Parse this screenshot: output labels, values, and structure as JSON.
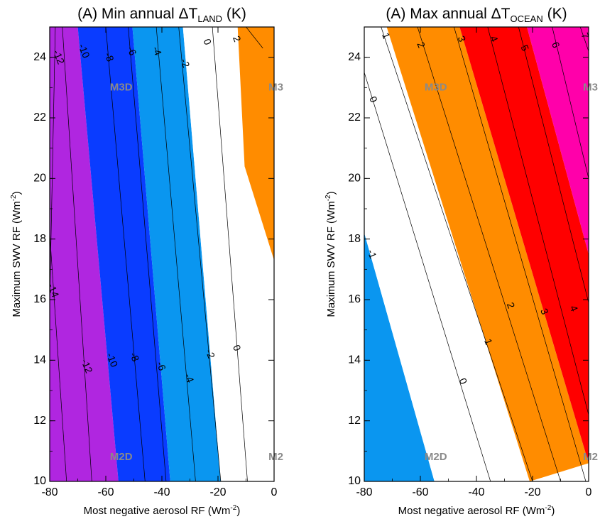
{
  "chart_data": [
    {
      "type": "contour",
      "title": "(A) Min annual ΔT",
      "title_sub": "LAND",
      "title_suffix": " (K)",
      "xlabel": "Most negative aerosol RF (Wm",
      "xlabel_sup": "-2",
      "xlabel_end": ")",
      "ylabel": "Maximum SWV RF (Wm",
      "ylabel_sup": "-2",
      "ylabel_end": ")",
      "xlim": [
        -80,
        0
      ],
      "ylim": [
        10,
        25
      ],
      "xticks": [
        -80,
        -60,
        -40,
        -20,
        0
      ],
      "yticks": [
        10,
        12,
        14,
        16,
        18,
        20,
        22,
        24
      ],
      "grid": false,
      "fill_bands": [
        {
          "color": "#b026e0",
          "left_edge": [
            [
              -80,
              10
            ],
            [
              -80,
              25
            ]
          ],
          "right_edge": [
            [
              -55.5,
              10
            ],
            [
              -70,
              25
            ]
          ]
        },
        {
          "color": "#0a3cff",
          "left_edge": [
            [
              -55.5,
              10
            ],
            [
              -70,
              25
            ]
          ],
          "right_edge": [
            [
              -37,
              10
            ],
            [
              -50.5,
              25
            ]
          ]
        },
        {
          "color": "#0a96f0",
          "left_edge": [
            [
              -37,
              10
            ],
            [
              -50.5,
              25
            ]
          ],
          "right_edge": [
            [
              -19,
              10
            ],
            [
              -32.5,
              25
            ]
          ]
        },
        {
          "color": "#ffffff",
          "left_edge": [
            [
              -19,
              10
            ],
            [
              -32.5,
              25
            ]
          ],
          "right_edge": [
            [
              0,
              17.3
            ],
            [
              -10.5,
              20.4
            ],
            [
              -13,
              25
            ]
          ]
        },
        {
          "color": "#ff8c00",
          "left_edge": [
            [
              0,
              17.3
            ],
            [
              -10.5,
              20.4
            ],
            [
              -13,
              25
            ]
          ],
          "right_edge": [
            [
              0,
              17.3
            ],
            [
              0,
              25
            ]
          ]
        }
      ],
      "contour_lines": [
        {
          "label": "-14",
          "points": [
            [
              -80,
              15.9
            ],
            [
              -78,
              25
            ]
          ]
        },
        {
          "label": "-12",
          "points": [
            [
              -74,
              10
            ],
            [
              -85,
              25
            ]
          ]
        },
        {
          "label": "-10",
          "points": [
            [
              -65,
              10
            ],
            [
              -75.5,
              25
            ]
          ]
        },
        {
          "label": "-8",
          "points": [
            [
              -46,
              10
            ],
            [
              -60,
              25
            ]
          ]
        },
        {
          "label": "-6",
          "points": [
            [
              -38.5,
              10
            ],
            [
              -52,
              25
            ]
          ]
        },
        {
          "label": "-4",
          "points": [
            [
              -28,
              10
            ],
            [
              -42,
              25
            ]
          ]
        },
        {
          "label": "-2",
          "points": [
            [
              -19,
              10
            ],
            [
              -34,
              25
            ]
          ]
        },
        {
          "label": "0",
          "points": [
            [
              -9.5,
              10
            ],
            [
              -22,
              25
            ]
          ]
        },
        {
          "label": "2",
          "points": [
            [
              -4,
              24.3
            ],
            [
              -10,
              25
            ]
          ]
        }
      ],
      "contour_label_positions": [
        {
          "text": "-12",
          "x": -77,
          "y": 24
        },
        {
          "text": "-10",
          "x": -68,
          "y": 24.2
        },
        {
          "text": "-8",
          "x": -59,
          "y": 24
        },
        {
          "text": "-6",
          "x": -51,
          "y": 24.2
        },
        {
          "text": "-4",
          "x": -42,
          "y": 24.2
        },
        {
          "text": "-2",
          "x": -32,
          "y": 23.8
        },
        {
          "text": "0",
          "x": -24,
          "y": 24.5
        },
        {
          "text": "2",
          "x": -13.5,
          "y": 24.6
        },
        {
          "text": "-14",
          "x": -79,
          "y": 16.3
        },
        {
          "text": "-12",
          "x": -67,
          "y": 13.8
        },
        {
          "text": "-10",
          "x": -58,
          "y": 14
        },
        {
          "text": "-8",
          "x": -50,
          "y": 14.1
        },
        {
          "text": "-6",
          "x": -40.5,
          "y": 13.8
        },
        {
          "text": "-4",
          "x": -30.5,
          "y": 13.4
        },
        {
          "text": "-2",
          "x": -23,
          "y": 14.2
        },
        {
          "text": "0",
          "x": -13.5,
          "y": 14.4
        }
      ],
      "markers": [
        {
          "text": "M3D",
          "x": -54.5,
          "y": 23
        },
        {
          "text": "M3",
          "x": 0,
          "y": 23
        },
        {
          "text": "M2D",
          "x": -54.5,
          "y": 10.8
        },
        {
          "text": "M2",
          "x": 0,
          "y": 10.8
        }
      ]
    },
    {
      "type": "contour",
      "title": "(A) Max annual ΔT",
      "title_sub": "OCEAN",
      "title_suffix": " (K)",
      "xlabel": "Most negative aerosol RF (Wm",
      "xlabel_sup": "-2",
      "xlabel_end": ")",
      "ylabel": "Maximum SWV RF (Wm",
      "ylabel_sup": "-2",
      "ylabel_end": ")",
      "xlim": [
        -80,
        0
      ],
      "ylim": [
        10,
        25
      ],
      "xticks": [
        -80,
        -60,
        -40,
        -20,
        0
      ],
      "yticks": [
        10,
        12,
        14,
        16,
        18,
        20,
        22,
        24
      ],
      "grid": false,
      "fill_bands": [
        {
          "color": "#0a96f0",
          "left_edge": [
            [
              -80,
              10
            ],
            [
              -80,
              18.2
            ]
          ],
          "right_edge": [
            [
              -55,
              10
            ],
            [
              -80,
              18.2
            ]
          ]
        },
        {
          "color": "#ffffff",
          "left_edge": [
            [
              -55,
              10
            ],
            [
              -80,
              18.2
            ]
          ],
          "right_edge": [
            [
              -21,
              10
            ],
            [
              -72,
              25
            ]
          ]
        },
        {
          "color": "#ff8c00",
          "left_edge": [
            [
              -21,
              10
            ],
            [
              -72,
              25
            ]
          ],
          "right_edge": [
            [
              0,
              10.6
            ],
            [
              -46,
              25
            ]
          ]
        },
        {
          "color": "#ff0000",
          "left_edge": [
            [
              0,
              10.6
            ],
            [
              -46,
              25
            ]
          ],
          "right_edge": [
            [
              0,
              17.5
            ],
            [
              -22,
              25
            ]
          ]
        },
        {
          "color": "#ff00aa",
          "left_edge": [
            [
              0,
              17.5
            ],
            [
              -22,
              25
            ]
          ],
          "right_edge": [
            [
              0,
              17.5
            ],
            [
              0,
              25
            ]
          ]
        }
      ],
      "contour_lines": [
        {
          "label": "-1",
          "points": [
            [
              -80,
              10.9
            ],
            [
              -86,
              25
            ]
          ]
        },
        {
          "label": "0",
          "points": [
            [
              -35,
              10
            ],
            [
              -80,
              23.5
            ]
          ]
        },
        {
          "label": "1",
          "points": [
            [
              -20,
              10
            ],
            [
              -74,
              25
            ]
          ]
        },
        {
          "label": "2",
          "points": [
            [
              -10,
              10
            ],
            [
              -61,
              25
            ]
          ]
        },
        {
          "label": "3",
          "points": [
            [
              -1,
              10
            ],
            [
              -48,
              25
            ]
          ]
        },
        {
          "label": "4",
          "points": [
            [
              0,
              12.2
            ],
            [
              -36,
              25
            ]
          ]
        },
        {
          "label": "5",
          "points": [
            [
              0,
              15.9
            ],
            [
              -25,
              25
            ]
          ]
        },
        {
          "label": "6",
          "points": [
            [
              0,
              20
            ],
            [
              -13,
              25
            ]
          ]
        },
        {
          "label": "7",
          "points": [
            [
              0,
              24.2
            ],
            [
              -3,
              25
            ]
          ]
        }
      ],
      "contour_label_positions": [
        {
          "text": "1",
          "x": -72.5,
          "y": 24.7
        },
        {
          "text": "2",
          "x": -60,
          "y": 24.4
        },
        {
          "text": "3",
          "x": -45.5,
          "y": 24.6
        },
        {
          "text": "4",
          "x": -34,
          "y": 24.6
        },
        {
          "text": "5",
          "x": -23,
          "y": 24.3
        },
        {
          "text": "6",
          "x": -12,
          "y": 24.4
        },
        {
          "text": "7",
          "x": -1.5,
          "y": 24.7
        },
        {
          "text": "0",
          "x": -77,
          "y": 22.6
        },
        {
          "text": "-1",
          "x": -77.5,
          "y": 17.5
        },
        {
          "text": "2",
          "x": -28,
          "y": 15.8
        },
        {
          "text": "3",
          "x": -16,
          "y": 15.6
        },
        {
          "text": "4",
          "x": -5.5,
          "y": 15.7
        },
        {
          "text": "1",
          "x": -36,
          "y": 14.6
        },
        {
          "text": "0",
          "x": -45,
          "y": 13.3
        }
      ],
      "markers": [
        {
          "text": "M3D",
          "x": -54.5,
          "y": 23
        },
        {
          "text": "M3",
          "x": 0,
          "y": 23
        },
        {
          "text": "M2D",
          "x": -54.5,
          "y": 10.8
        },
        {
          "text": "M2",
          "x": 0,
          "y": 10.8
        }
      ]
    }
  ]
}
